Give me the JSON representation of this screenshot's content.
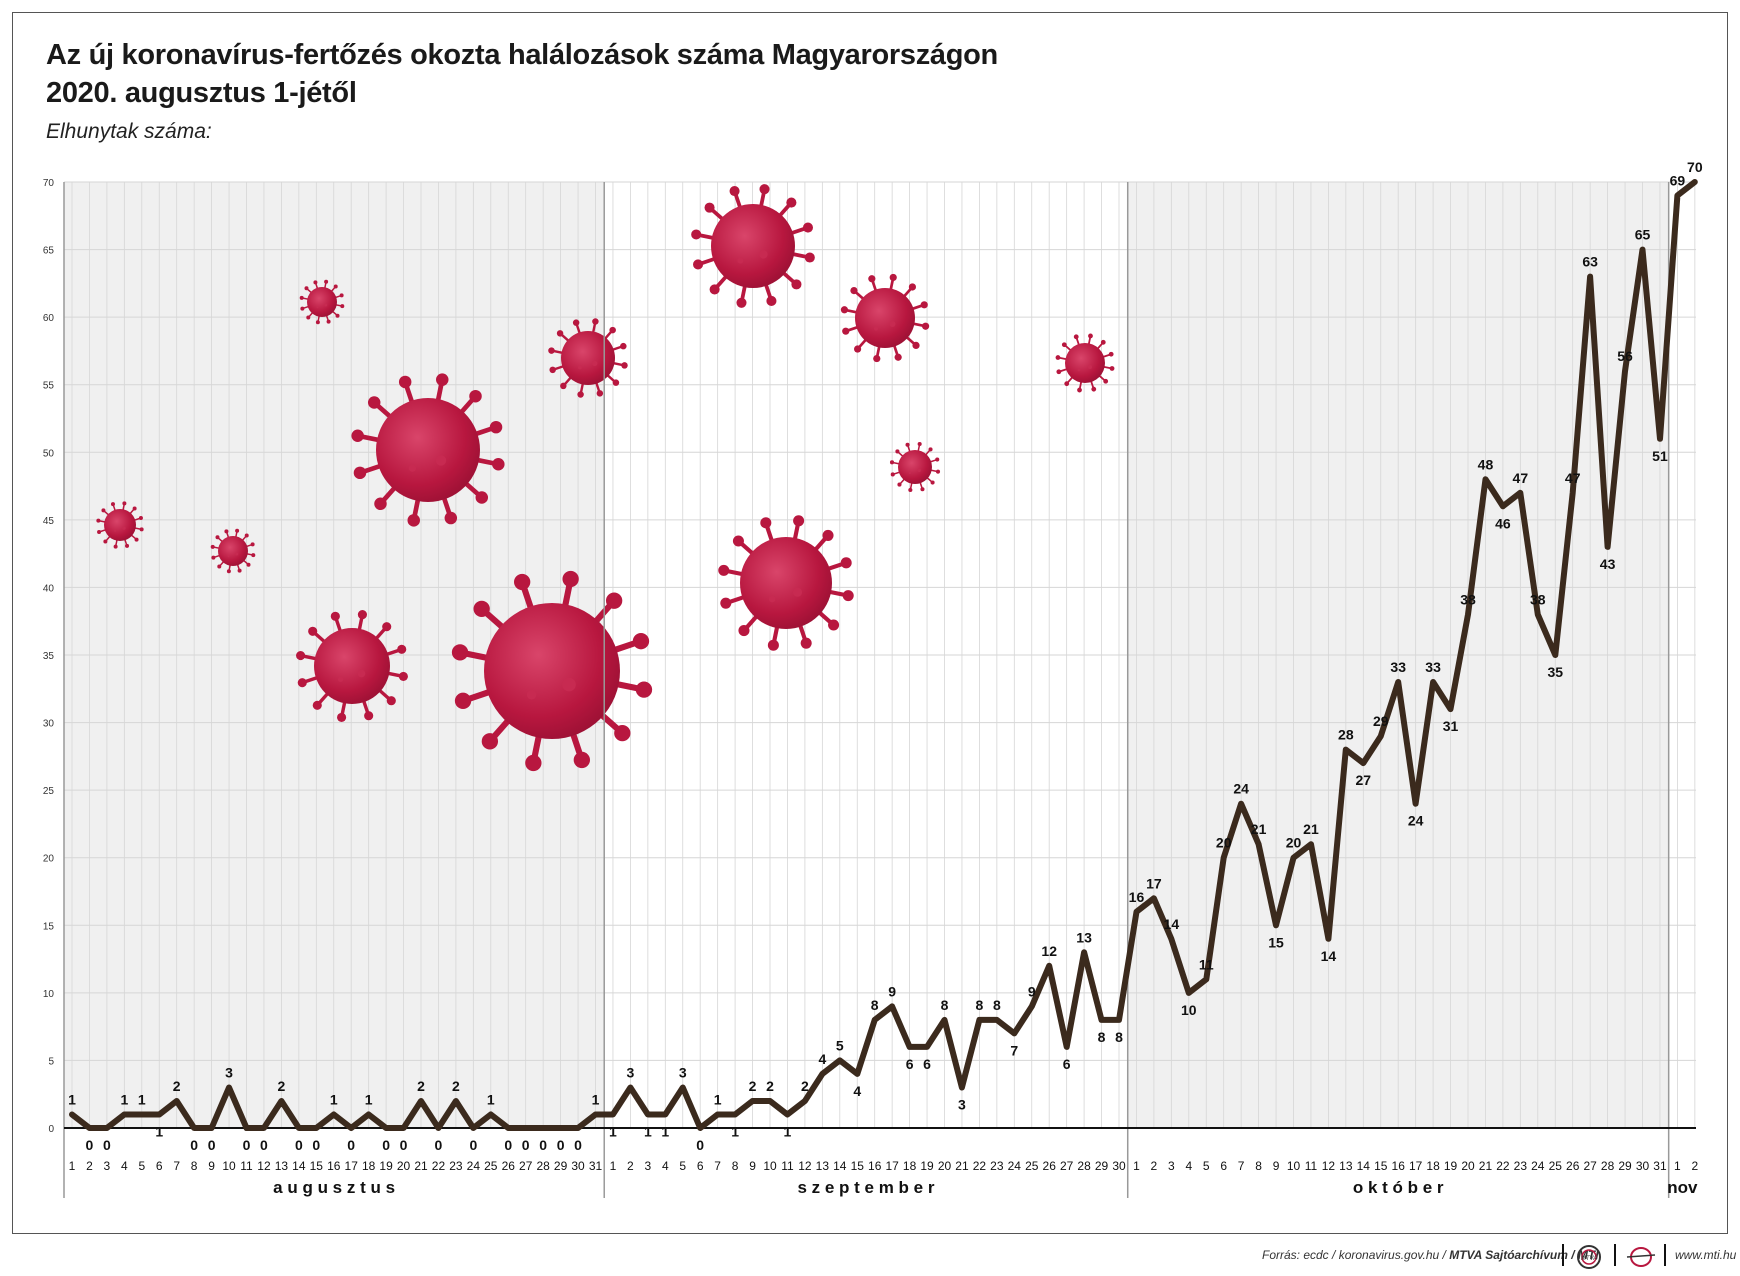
{
  "header": {
    "title_line1": "Az új koronavírus-fertőzés okozta halálozások száma Magyarországon",
    "title_line2": "2020. augusztus 1-jétől",
    "subtitle": "Elhunytak száma:"
  },
  "footer": {
    "source_prefix": "Forrás: ecdc / koronavirus.gov.hu / ",
    "source_bold": "MTVA Sajtóarchívum / MTI",
    "website": "www.mti.hu",
    "logo1_icon": "mtva-logo-icon",
    "logo2_icon": "mti-logo-icon"
  },
  "colors": {
    "line": "#3b2a1d",
    "virus": "#b8173f",
    "virus_light": "#d43a5f",
    "grid": "#d6d6d6",
    "shade": "#f0f0f0"
  },
  "chart_data": {
    "type": "line",
    "title": "Az új koronavírus-fertőzés okozta halálozások száma Magyarországon 2020. augusztus 1-jétől",
    "ylabel": "Elhunytak száma:",
    "ylim": [
      0,
      70
    ],
    "yticks": [
      0,
      5,
      10,
      15,
      20,
      25,
      30,
      35,
      40,
      45,
      50,
      55,
      60,
      65,
      70
    ],
    "grid": true,
    "months": [
      {
        "name": "a u g u s z t u s",
        "days": 31,
        "shaded": true
      },
      {
        "name": "s z e p t e m b e r",
        "days": 30,
        "shaded": false
      },
      {
        "name": "o k t ó b e r",
        "days": 31,
        "shaded": true
      },
      {
        "name": "nov",
        "days": 2,
        "shaded": false
      }
    ],
    "x": [
      "1",
      "2",
      "3",
      "4",
      "5",
      "6",
      "7",
      "8",
      "9",
      "10",
      "11",
      "12",
      "13",
      "14",
      "15",
      "16",
      "17",
      "18",
      "19",
      "20",
      "21",
      "22",
      "23",
      "24",
      "25",
      "26",
      "27",
      "28",
      "29",
      "30",
      "31",
      "1",
      "2",
      "3",
      "4",
      "5",
      "6",
      "7",
      "8",
      "9",
      "10",
      "11",
      "12",
      "13",
      "14",
      "15",
      "16",
      "17",
      "18",
      "19",
      "20",
      "21",
      "22",
      "23",
      "24",
      "25",
      "26",
      "27",
      "28",
      "29",
      "30",
      "1",
      "2",
      "3",
      "4",
      "5",
      "6",
      "7",
      "8",
      "9",
      "10",
      "11",
      "12",
      "13",
      "14",
      "15",
      "16",
      "17",
      "18",
      "19",
      "20",
      "21",
      "22",
      "23",
      "24",
      "25",
      "26",
      "27",
      "28",
      "29",
      "30",
      "31",
      "1",
      "2"
    ],
    "series": [
      {
        "values": [
          1,
          0,
          0,
          1,
          1,
          1,
          2,
          0,
          0,
          3,
          0,
          0,
          2,
          0,
          0,
          1,
          0,
          1,
          0,
          0,
          2,
          0,
          2,
          0,
          1,
          0,
          0,
          0,
          0,
          0,
          1,
          1,
          3,
          1,
          1,
          3,
          0,
          1,
          1,
          2,
          2,
          1,
          2,
          4,
          5,
          4,
          8,
          9,
          6,
          6,
          8,
          3,
          8,
          8,
          7,
          9,
          12,
          6,
          13,
          8,
          8,
          16,
          17,
          14,
          10,
          11,
          20,
          24,
          21,
          15,
          20,
          21,
          14,
          28,
          27,
          29,
          33,
          24,
          33,
          31,
          38,
          48,
          46,
          47,
          38,
          35,
          47,
          63,
          43,
          56,
          65,
          51,
          69,
          70
        ]
      }
    ]
  }
}
